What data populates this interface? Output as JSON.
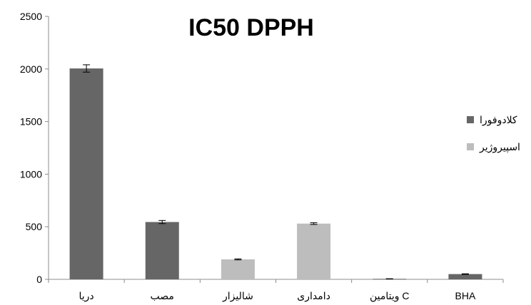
{
  "chart_data": {
    "type": "bar",
    "title": "IC50 DPPH",
    "xlabel": "",
    "ylabel": "",
    "ylim": [
      0,
      2500
    ],
    "yticks": [
      "0",
      "500",
      "1000",
      "1500",
      "2000",
      "2500"
    ],
    "grid": false,
    "legend_position": "right",
    "categories": [
      "دریا",
      "مصب",
      "شالیزار",
      "دامداری",
      "ویتامین C",
      "BHA"
    ],
    "series": [
      {
        "name": "کلادوفورا",
        "color": "#666666"
      },
      {
        "name": "اسپیروژیر",
        "color": "#bdbdbd"
      }
    ],
    "bars": [
      {
        "category": "دریا",
        "series": "کلادوفورا",
        "value": 2005,
        "error": 35
      },
      {
        "category": "مصب",
        "series": "کلادوفورا",
        "value": 545,
        "error": 15
      },
      {
        "category": "شالیزار",
        "series": "اسپیروژیر",
        "value": 190,
        "error": 5
      },
      {
        "category": "دامداری",
        "series": "اسپیروژیر",
        "value": 530,
        "error": 8
      },
      {
        "category": "ویتامین C",
        "series": "کلادوفورا",
        "value": 5,
        "error": 1
      },
      {
        "category": "BHA",
        "series": "کلادوفورا",
        "value": 50,
        "error": 3
      }
    ]
  }
}
